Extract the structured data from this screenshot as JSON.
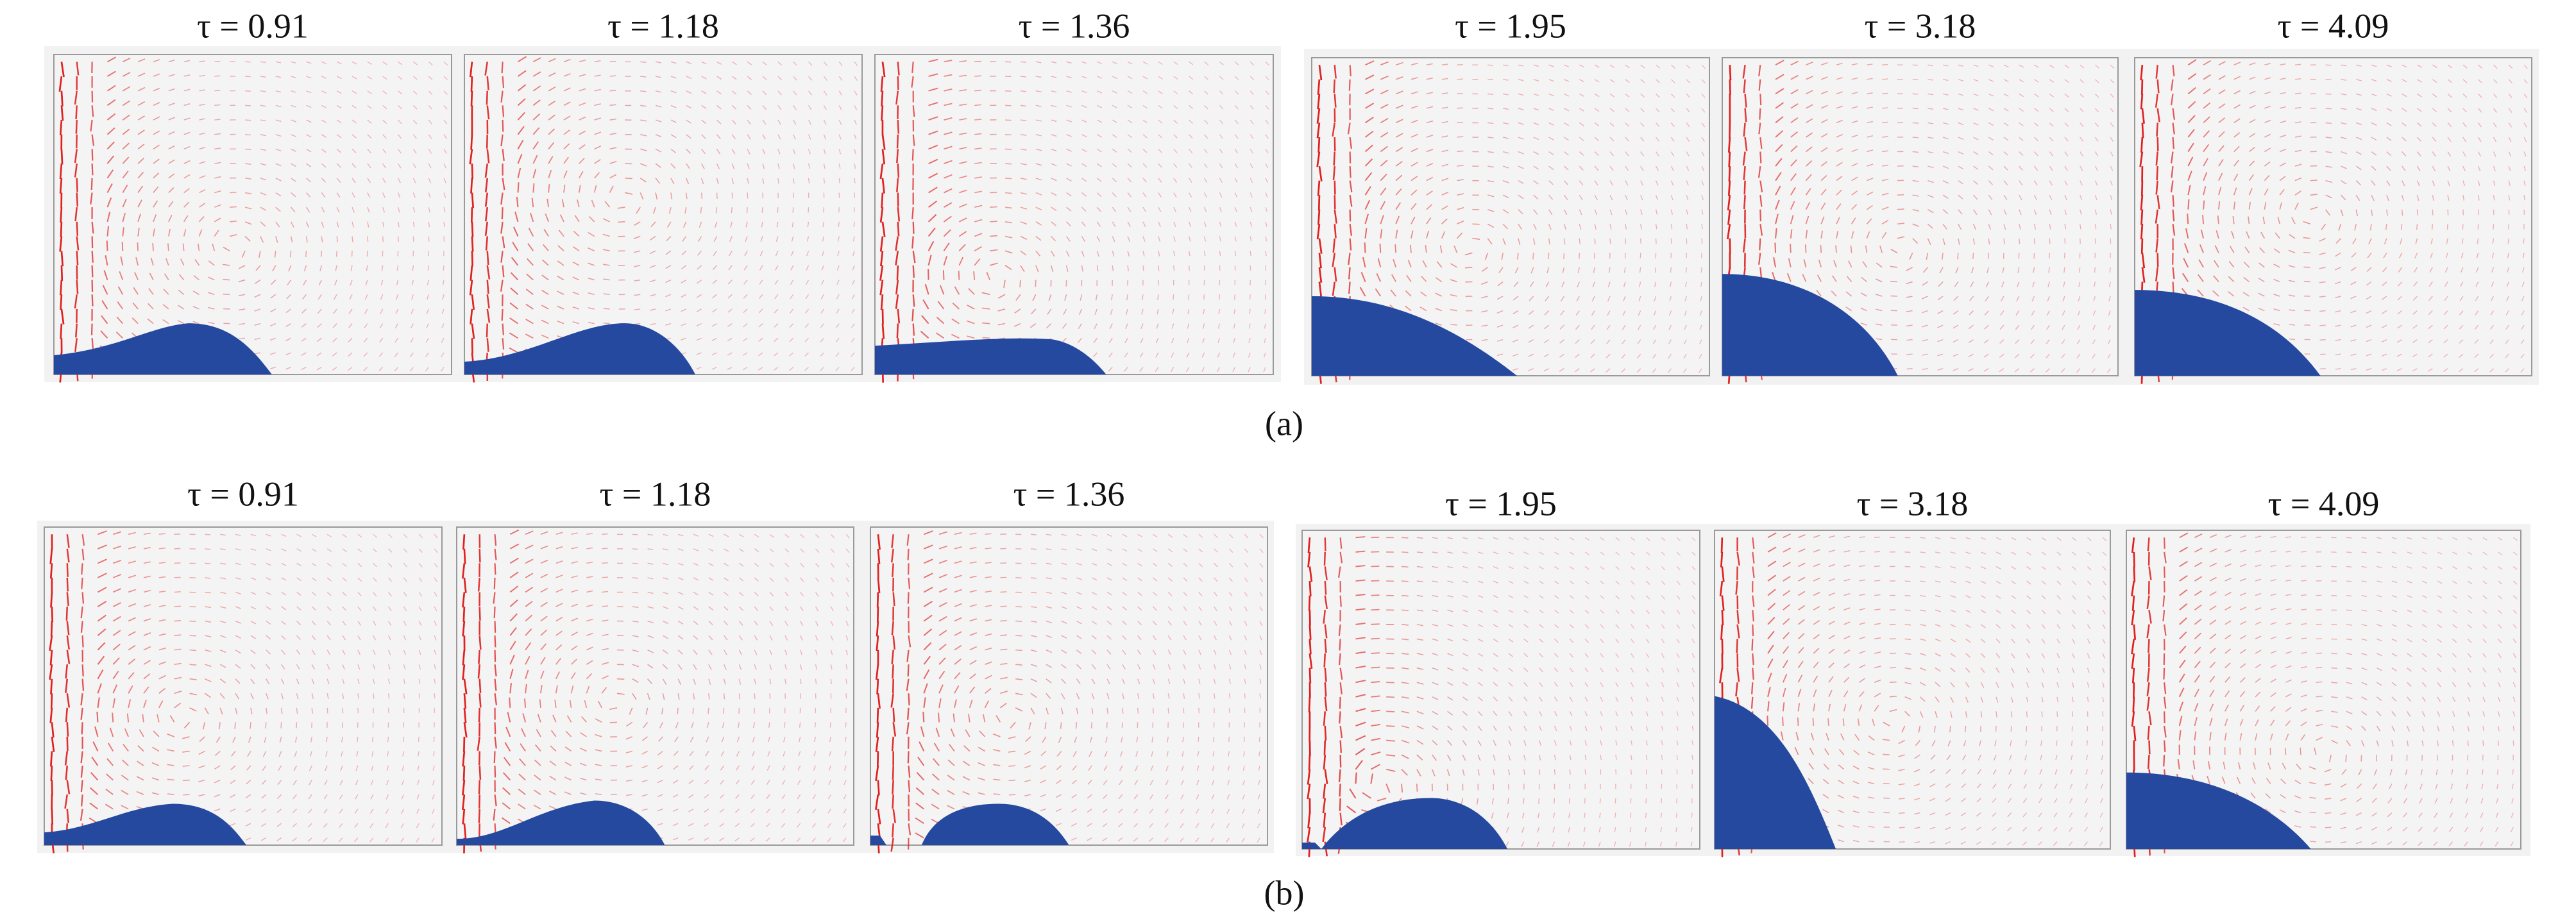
{
  "figure": {
    "rows": [
      {
        "label": "(a)",
        "panels": [
          {
            "title": "τ = 0.91"
          },
          {
            "title": "τ = 1.18"
          },
          {
            "title": "τ = 1.36"
          },
          {
            "title": "τ = 1.95"
          },
          {
            "title": "τ = 3.18"
          },
          {
            "title": "τ = 4.09"
          }
        ]
      },
      {
        "label": "(b)",
        "panels": [
          {
            "title": "τ = 0.91"
          },
          {
            "title": "τ = 1.18"
          },
          {
            "title": "τ = 1.36"
          },
          {
            "title": "τ = 1.95"
          },
          {
            "title": "τ = 3.18"
          },
          {
            "title": "τ = 4.09"
          }
        ]
      }
    ]
  }
}
